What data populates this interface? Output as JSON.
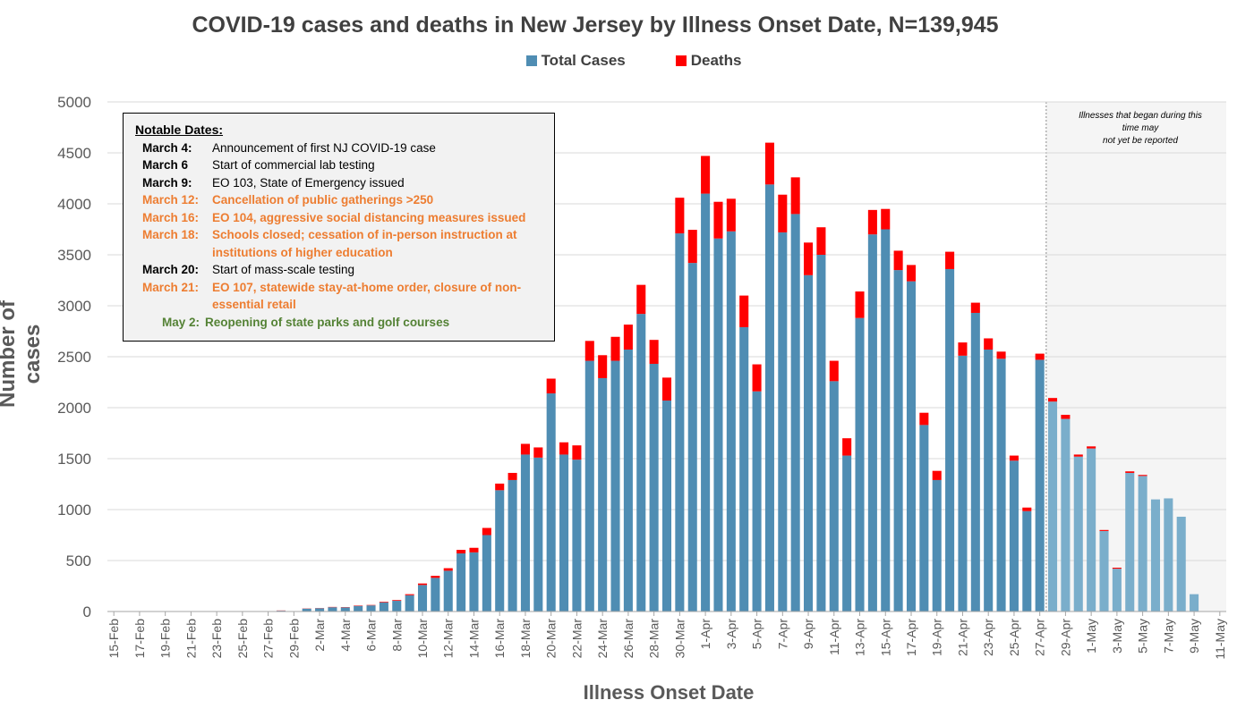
{
  "chart_data": {
    "type": "bar",
    "stacked": true,
    "title": "COVID-19 cases and deaths in New Jersey by Illness Onset Date, N=139,945",
    "xlabel": "Illness Onset Date",
    "ylabel": "Number of cases",
    "ylim": [
      0,
      5000
    ],
    "yticks": [
      0,
      500,
      1000,
      1500,
      2000,
      2500,
      3000,
      3500,
      4000,
      4500,
      5000
    ],
    "grid": "horizontal",
    "legend_position": "top",
    "x_tick_labels": [
      "15-Feb",
      "17-Feb",
      "19-Feb",
      "21-Feb",
      "23-Feb",
      "25-Feb",
      "27-Feb",
      "29-Feb",
      "2-Mar",
      "4-Mar",
      "6-Mar",
      "8-Mar",
      "10-Mar",
      "12-Mar",
      "14-Mar",
      "16-Mar",
      "18-Mar",
      "20-Mar",
      "22-Mar",
      "24-Mar",
      "26-Mar",
      "28-Mar",
      "30-Mar",
      "1-Apr",
      "3-Apr",
      "5-Apr",
      "7-Apr",
      "9-Apr",
      "11-Apr",
      "13-Apr",
      "15-Apr",
      "17-Apr",
      "19-Apr",
      "21-Apr",
      "23-Apr",
      "25-Apr",
      "27-Apr",
      "29-Apr",
      "1-May",
      "3-May",
      "5-May",
      "7-May",
      "9-May",
      "11-May"
    ],
    "start_date": "15-Feb",
    "series": [
      {
        "name": "Total Cases",
        "color": "#4f8db3",
        "pending_color": "#7aaecb"
      },
      {
        "name": "Deaths",
        "color": "#ff0000"
      }
    ],
    "days": [
      {
        "date": "15-Feb",
        "cases": 0,
        "deaths": 0
      },
      {
        "date": "16-Feb",
        "cases": 0,
        "deaths": 0
      },
      {
        "date": "17-Feb",
        "cases": 0,
        "deaths": 0
      },
      {
        "date": "18-Feb",
        "cases": 0,
        "deaths": 0
      },
      {
        "date": "19-Feb",
        "cases": 0,
        "deaths": 0
      },
      {
        "date": "20-Feb",
        "cases": 0,
        "deaths": 0
      },
      {
        "date": "21-Feb",
        "cases": 0,
        "deaths": 0
      },
      {
        "date": "22-Feb",
        "cases": 0,
        "deaths": 0
      },
      {
        "date": "23-Feb",
        "cases": 0,
        "deaths": 0
      },
      {
        "date": "24-Feb",
        "cases": 0,
        "deaths": 0
      },
      {
        "date": "25-Feb",
        "cases": 0,
        "deaths": 0
      },
      {
        "date": "26-Feb",
        "cases": 0,
        "deaths": 0
      },
      {
        "date": "27-Feb",
        "cases": 0,
        "deaths": 0
      },
      {
        "date": "28-Feb",
        "cases": 8,
        "deaths": 2
      },
      {
        "date": "29-Feb",
        "cases": 0,
        "deaths": 0
      },
      {
        "date": "1-Mar",
        "cases": 28,
        "deaths": 2
      },
      {
        "date": "2-Mar",
        "cases": 32,
        "deaths": 2
      },
      {
        "date": "3-Mar",
        "cases": 42,
        "deaths": 3
      },
      {
        "date": "4-Mar",
        "cases": 40,
        "deaths": 3
      },
      {
        "date": "5-Mar",
        "cases": 55,
        "deaths": 4
      },
      {
        "date": "6-Mar",
        "cases": 60,
        "deaths": 4
      },
      {
        "date": "7-Mar",
        "cases": 90,
        "deaths": 6
      },
      {
        "date": "8-Mar",
        "cases": 105,
        "deaths": 7
      },
      {
        "date": "9-Mar",
        "cases": 160,
        "deaths": 10
      },
      {
        "date": "10-Mar",
        "cases": 260,
        "deaths": 15
      },
      {
        "date": "11-Mar",
        "cases": 330,
        "deaths": 20
      },
      {
        "date": "12-Mar",
        "cases": 400,
        "deaths": 25
      },
      {
        "date": "13-Mar",
        "cases": 570,
        "deaths": 35
      },
      {
        "date": "14-Mar",
        "cases": 580,
        "deaths": 45
      },
      {
        "date": "15-Mar",
        "cases": 750,
        "deaths": 70
      },
      {
        "date": "16-Mar",
        "cases": 1190,
        "deaths": 65
      },
      {
        "date": "17-Mar",
        "cases": 1290,
        "deaths": 70
      },
      {
        "date": "18-Mar",
        "cases": 1540,
        "deaths": 105
      },
      {
        "date": "19-Mar",
        "cases": 1510,
        "deaths": 100
      },
      {
        "date": "20-Mar",
        "cases": 2140,
        "deaths": 145
      },
      {
        "date": "21-Mar",
        "cases": 1540,
        "deaths": 120
      },
      {
        "date": "22-Mar",
        "cases": 1490,
        "deaths": 140
      },
      {
        "date": "23-Mar",
        "cases": 2460,
        "deaths": 195
      },
      {
        "date": "24-Mar",
        "cases": 2290,
        "deaths": 225
      },
      {
        "date": "25-Mar",
        "cases": 2460,
        "deaths": 235
      },
      {
        "date": "26-Mar",
        "cases": 2570,
        "deaths": 245
      },
      {
        "date": "27-Mar",
        "cases": 2920,
        "deaths": 285
      },
      {
        "date": "28-Mar",
        "cases": 2430,
        "deaths": 235
      },
      {
        "date": "29-Mar",
        "cases": 2070,
        "deaths": 225
      },
      {
        "date": "30-Mar",
        "cases": 3710,
        "deaths": 350
      },
      {
        "date": "31-Mar",
        "cases": 3420,
        "deaths": 325
      },
      {
        "date": "1-Apr",
        "cases": 4100,
        "deaths": 370
      },
      {
        "date": "2-Apr",
        "cases": 3660,
        "deaths": 360
      },
      {
        "date": "3-Apr",
        "cases": 3730,
        "deaths": 320
      },
      {
        "date": "4-Apr",
        "cases": 2790,
        "deaths": 310
      },
      {
        "date": "5-Apr",
        "cases": 2160,
        "deaths": 265
      },
      {
        "date": "6-Apr",
        "cases": 4190,
        "deaths": 410
      },
      {
        "date": "7-Apr",
        "cases": 3720,
        "deaths": 370
      },
      {
        "date": "8-Apr",
        "cases": 3900,
        "deaths": 360
      },
      {
        "date": "9-Apr",
        "cases": 3300,
        "deaths": 320
      },
      {
        "date": "10-Apr",
        "cases": 3500,
        "deaths": 270
      },
      {
        "date": "11-Apr",
        "cases": 2260,
        "deaths": 200
      },
      {
        "date": "12-Apr",
        "cases": 1530,
        "deaths": 170
      },
      {
        "date": "13-Apr",
        "cases": 2880,
        "deaths": 260
      },
      {
        "date": "14-Apr",
        "cases": 3700,
        "deaths": 240
      },
      {
        "date": "15-Apr",
        "cases": 3750,
        "deaths": 200
      },
      {
        "date": "16-Apr",
        "cases": 3350,
        "deaths": 190
      },
      {
        "date": "17-Apr",
        "cases": 3240,
        "deaths": 160
      },
      {
        "date": "18-Apr",
        "cases": 1830,
        "deaths": 120
      },
      {
        "date": "19-Apr",
        "cases": 1290,
        "deaths": 90
      },
      {
        "date": "20-Apr",
        "cases": 3360,
        "deaths": 170
      },
      {
        "date": "21-Apr",
        "cases": 2510,
        "deaths": 130
      },
      {
        "date": "22-Apr",
        "cases": 2930,
        "deaths": 100
      },
      {
        "date": "23-Apr",
        "cases": 2570,
        "deaths": 110
      },
      {
        "date": "24-Apr",
        "cases": 2480,
        "deaths": 70
      },
      {
        "date": "25-Apr",
        "cases": 1480,
        "deaths": 50
      },
      {
        "date": "26-Apr",
        "cases": 985,
        "deaths": 35
      },
      {
        "date": "27-Apr",
        "cases": 2470,
        "deaths": 60
      },
      {
        "date": "28-Apr",
        "cases": 2060,
        "deaths": 35
      },
      {
        "date": "29-Apr",
        "cases": 1890,
        "deaths": 40
      },
      {
        "date": "30-Apr",
        "cases": 1520,
        "deaths": 20
      },
      {
        "date": "1-May",
        "cases": 1600,
        "deaths": 20
      },
      {
        "date": "2-May",
        "cases": 790,
        "deaths": 10
      },
      {
        "date": "3-May",
        "cases": 420,
        "deaths": 10
      },
      {
        "date": "4-May",
        "cases": 1360,
        "deaths": 15
      },
      {
        "date": "5-May",
        "cases": 1330,
        "deaths": 10
      },
      {
        "date": "6-May",
        "cases": 1100,
        "deaths": 0
      },
      {
        "date": "7-May",
        "cases": 1110,
        "deaths": 0
      },
      {
        "date": "8-May",
        "cases": 930,
        "deaths": 0
      },
      {
        "date": "9-May",
        "cases": 170,
        "deaths": 0
      },
      {
        "date": "10-May",
        "cases": 0,
        "deaths": 0
      },
      {
        "date": "11-May",
        "cases": 0,
        "deaths": 0
      }
    ],
    "pending_from": "28-Apr",
    "pending_note_lines": [
      "Illnesses that began during this",
      "time may",
      "not yet be reported"
    ]
  },
  "notable": {
    "heading": "Notable Dates:",
    "items": [
      {
        "date": "March 4:",
        "text": "Announcement of first NJ COVID-19 case",
        "style": "black"
      },
      {
        "date": "March 6",
        "text": "Start of commercial lab testing",
        "style": "black"
      },
      {
        "date": "March 9:",
        "text": "EO 103, State of Emergency issued",
        "style": "black"
      },
      {
        "date": "March 12:",
        "text": "Cancellation of public gatherings >250",
        "style": "orange"
      },
      {
        "date": "March 16:",
        "text": "EO 104, aggressive social distancing measures issued",
        "style": "orange"
      },
      {
        "date": "March 18:",
        "text": "Schools closed; cessation of in-person instruction at institutions of higher education",
        "style": "orange"
      },
      {
        "date": "March 20:",
        "text": "Start of mass-scale testing",
        "style": "black"
      },
      {
        "date": "March 21:",
        "text": "EO 107, statewide stay-at-home order, closure of non-essential retail",
        "style": "orange"
      },
      {
        "date": "May 2:",
        "text": "Reopening of state parks and golf courses",
        "style": "green"
      }
    ]
  }
}
